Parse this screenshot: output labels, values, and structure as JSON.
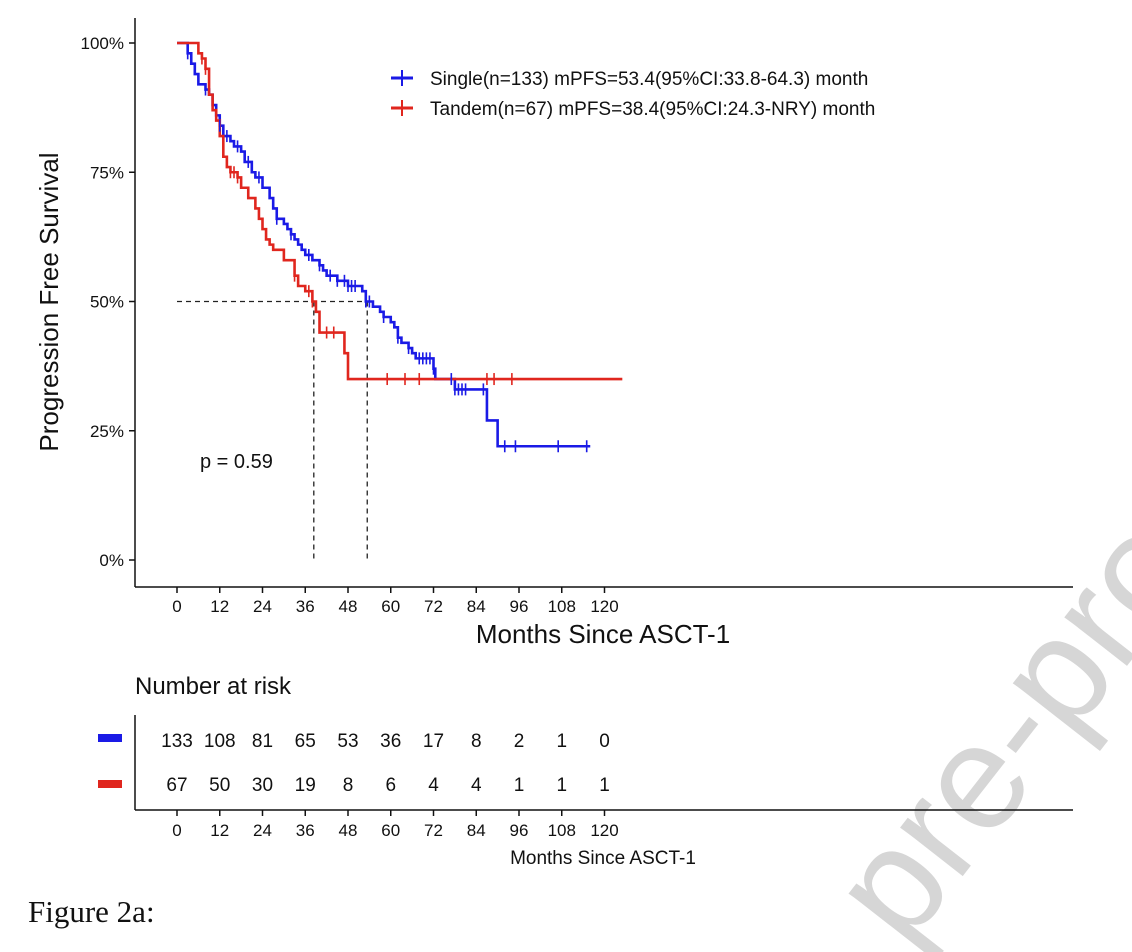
{
  "chart_data": {
    "type": "line",
    "subtype": "kaplan-meier",
    "ylabel": "Progression Free Survival",
    "xlabel": "Months Since ASCT-1",
    "xlim": [
      -5,
      125
    ],
    "ylim": [
      0,
      1
    ],
    "x_ticks": [
      0,
      12,
      24,
      36,
      48,
      60,
      72,
      84,
      96,
      108,
      120
    ],
    "x_tick_labels": [
      "0",
      "12",
      "24",
      "36",
      "48",
      "60",
      "72",
      "84",
      "96",
      "108",
      "120"
    ],
    "y_ticks": [
      0,
      0.25,
      0.5,
      0.75,
      1.0
    ],
    "y_tick_labels": [
      "0%",
      "25%",
      "50%",
      "75%",
      "100%"
    ],
    "grid": false,
    "legend_position": "top-right",
    "annotation": "p = 0.59",
    "median_reference": {
      "y": 0.5,
      "x_values": [
        38.4,
        53.4
      ]
    },
    "series": [
      {
        "name": "Single(n=133) mPFS=53.4(95%CI:33.8-64.3) month",
        "color": "#1a1ae6",
        "steps": [
          [
            0,
            1.0
          ],
          [
            3,
            0.98
          ],
          [
            4,
            0.96
          ],
          [
            5,
            0.94
          ],
          [
            6,
            0.92
          ],
          [
            8,
            0.91
          ],
          [
            9,
            0.9
          ],
          [
            10,
            0.88
          ],
          [
            11,
            0.86
          ],
          [
            12,
            0.84
          ],
          [
            13,
            0.82
          ],
          [
            15,
            0.81
          ],
          [
            16,
            0.8
          ],
          [
            18,
            0.79
          ],
          [
            19,
            0.77
          ],
          [
            21,
            0.75
          ],
          [
            22,
            0.74
          ],
          [
            24,
            0.72
          ],
          [
            26,
            0.7
          ],
          [
            27,
            0.68
          ],
          [
            28,
            0.66
          ],
          [
            30,
            0.65
          ],
          [
            31,
            0.64
          ],
          [
            32,
            0.63
          ],
          [
            33,
            0.62
          ],
          [
            34,
            0.61
          ],
          [
            35,
            0.6
          ],
          [
            36,
            0.59
          ],
          [
            38,
            0.58
          ],
          [
            40,
            0.57
          ],
          [
            41,
            0.56
          ],
          [
            42,
            0.55
          ],
          [
            45,
            0.54
          ],
          [
            48,
            0.53
          ],
          [
            52,
            0.52
          ],
          [
            53,
            0.5
          ],
          [
            55,
            0.49
          ],
          [
            57,
            0.48
          ],
          [
            58,
            0.47
          ],
          [
            60,
            0.46
          ],
          [
            61,
            0.45
          ],
          [
            62,
            0.43
          ],
          [
            63,
            0.42
          ],
          [
            65,
            0.41
          ],
          [
            66,
            0.4
          ],
          [
            67,
            0.39
          ],
          [
            72,
            0.37
          ],
          [
            72.5,
            0.35
          ],
          [
            78,
            0.33
          ],
          [
            86,
            0.33
          ],
          [
            87,
            0.27
          ],
          [
            90,
            0.22
          ],
          [
            116,
            0.22
          ]
        ],
        "censor_times": [
          3,
          8,
          12,
          14,
          17,
          20,
          23,
          28,
          32,
          37,
          40,
          43,
          45,
          47,
          48,
          49,
          50,
          53,
          54,
          58,
          62,
          65,
          68,
          69,
          70,
          71,
          72,
          77,
          78,
          79,
          80,
          81,
          86,
          92,
          95,
          107,
          115
        ]
      },
      {
        "name": "Tandem(n=67) mPFS=38.4(95%CI:24.3-NRY) month",
        "color": "#e0261e",
        "steps": [
          [
            0,
            1.0
          ],
          [
            6,
            0.98
          ],
          [
            7,
            0.97
          ],
          [
            8,
            0.95
          ],
          [
            9,
            0.9
          ],
          [
            10,
            0.87
          ],
          [
            11,
            0.85
          ],
          [
            12,
            0.82
          ],
          [
            13,
            0.78
          ],
          [
            14,
            0.76
          ],
          [
            15,
            0.75
          ],
          [
            17,
            0.74
          ],
          [
            18,
            0.72
          ],
          [
            20,
            0.7
          ],
          [
            22,
            0.68
          ],
          [
            23,
            0.66
          ],
          [
            24,
            0.64
          ],
          [
            25,
            0.62
          ],
          [
            26,
            0.61
          ],
          [
            27,
            0.6
          ],
          [
            30,
            0.58
          ],
          [
            33,
            0.55
          ],
          [
            34,
            0.53
          ],
          [
            36,
            0.52
          ],
          [
            38,
            0.5
          ],
          [
            39,
            0.48
          ],
          [
            40,
            0.44
          ],
          [
            47,
            0.4
          ],
          [
            48,
            0.35
          ],
          [
            125,
            0.35
          ]
        ],
        "censor_times": [
          7,
          8,
          15,
          16,
          17,
          33,
          37,
          38,
          42,
          44,
          59,
          64,
          68,
          87,
          89,
          94
        ]
      }
    ],
    "risk_table": {
      "title": "Number at risk",
      "x_ticks": [
        "0",
        "12",
        "24",
        "36",
        "48",
        "60",
        "72",
        "84",
        "96",
        "108",
        "120"
      ],
      "xlabel": "Months Since ASCT-1",
      "rows": [
        {
          "color": "#1a1ae6",
          "values": [
            "133",
            "108",
            "81",
            "65",
            "53",
            "36",
            "17",
            "8",
            "2",
            "1",
            "0"
          ]
        },
        {
          "color": "#e0261e",
          "values": [
            "67",
            "50",
            "30",
            "19",
            "8",
            "6",
            "4",
            "4",
            "1",
            "1",
            "1"
          ]
        }
      ]
    }
  },
  "caption": "Figure 2a:",
  "watermark": "pre-proof"
}
